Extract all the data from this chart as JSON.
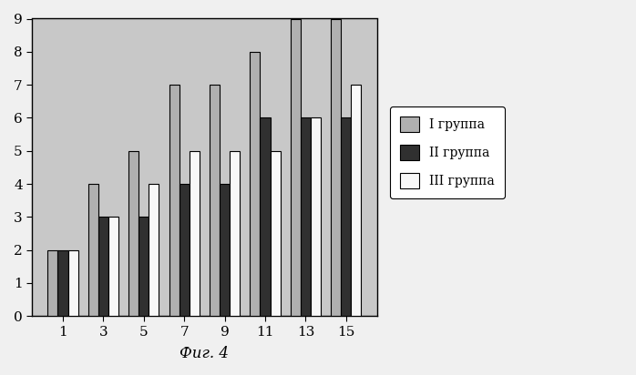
{
  "categories": [
    "1",
    "3",
    "5",
    "7",
    "9",
    "11",
    "13",
    "15"
  ],
  "group1": [
    2,
    4,
    5,
    7,
    7,
    8,
    9,
    9
  ],
  "group2": [
    2,
    3,
    3,
    4,
    4,
    6,
    6,
    6
  ],
  "group3": [
    2,
    3,
    4,
    5,
    5,
    5,
    6,
    7
  ],
  "group1_color": "#b0b0b0",
  "group2_color": "#303030",
  "group3_color": "#f8f8f8",
  "group1_label": "I группа",
  "group2_label": "II группа",
  "group3_label": "III группа",
  "ylim": [
    0,
    9
  ],
  "yticks": [
    0,
    1,
    2,
    3,
    4,
    5,
    6,
    7,
    8,
    9
  ],
  "xlabel": "Фиг. 4",
  "bg_color": "#c8c8c8",
  "bar_width": 0.25,
  "figsize": [
    6.98,
    4.12
  ],
  "dpi": 100
}
